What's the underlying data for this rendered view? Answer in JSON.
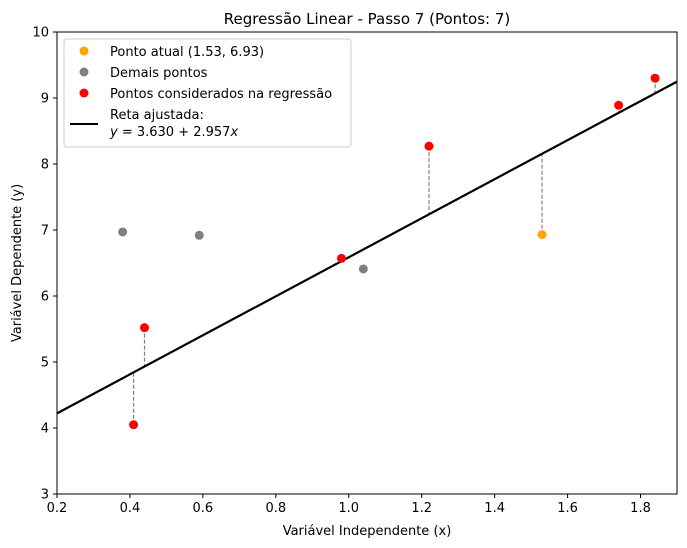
{
  "chart_data": {
    "type": "scatter",
    "title": "Regressão Linear - Passo 7 (Pontos: 7)",
    "xlabel": "Variável Independente (x)",
    "ylabel": "Variável Dependente (y)",
    "xlim": [
      0.2,
      1.9
    ],
    "ylim": [
      3,
      10
    ],
    "xticks": [
      "0.2",
      "0.4",
      "0.6",
      "0.8",
      "1.0",
      "1.2",
      "1.4",
      "1.6",
      "1.8"
    ],
    "yticks": [
      "3",
      "4",
      "5",
      "6",
      "7",
      "8",
      "9",
      "10"
    ],
    "grid": false,
    "legend_position": "top-left",
    "regression": {
      "intercept": 3.63,
      "slope": 2.957
    },
    "series": [
      {
        "name": "Ponto atual (1.53, 6.93)",
        "color": "#ffa500",
        "points": [
          [
            1.53,
            6.93
          ]
        ]
      },
      {
        "name": "Demais pontos",
        "color": "#808080",
        "points": [
          [
            0.38,
            6.97
          ],
          [
            0.59,
            6.92
          ],
          [
            1.04,
            6.41
          ]
        ]
      },
      {
        "name": "Pontos considerados na regressão",
        "color": "#ff0000",
        "points": [
          [
            0.41,
            4.05
          ],
          [
            0.44,
            5.52
          ],
          [
            0.98,
            6.57
          ],
          [
            1.22,
            8.27
          ],
          [
            1.74,
            8.89
          ],
          [
            1.84,
            9.3
          ]
        ]
      }
    ],
    "line_legend": {
      "label": "Reta ajustada:",
      "equation_prefix": "y",
      "equation_rest": " = 3.630 + 2.957",
      "equation_var": "x",
      "color": "#000000"
    }
  }
}
